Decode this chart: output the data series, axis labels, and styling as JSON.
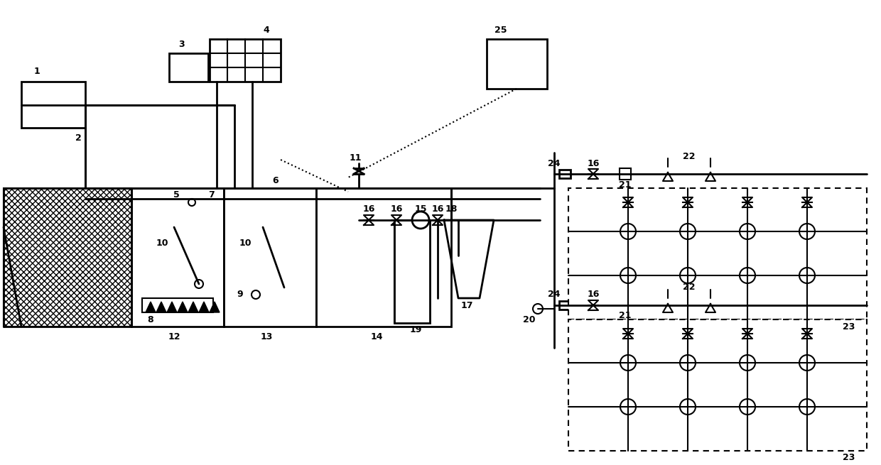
{
  "bg_color": "#ffffff",
  "line_color": "#000000",
  "lw": 1.5,
  "fig_width": 12.4,
  "fig_height": 6.55
}
